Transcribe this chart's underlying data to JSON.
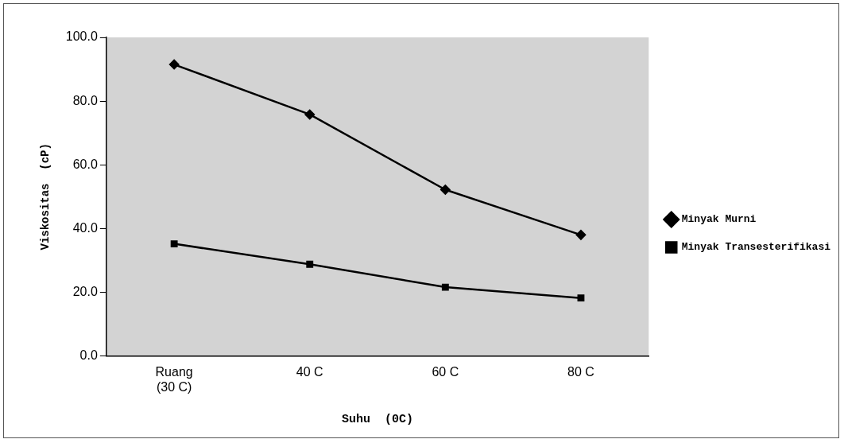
{
  "chart_data": {
    "type": "line",
    "xlabel": "Suhu  (0C)",
    "ylabel": "Viskositas  (cP)",
    "categories": [
      "Ruang\n(30 C)",
      "40 C",
      "60 C",
      "80 C"
    ],
    "series": [
      {
        "name": "Minyak Murni",
        "color": "#000000",
        "marker": "diamond",
        "values": [
          91.5,
          75.8,
          52.2,
          38.0
        ]
      },
      {
        "name": "Minyak Transesterifikasi",
        "color": "#000000",
        "marker": "square",
        "values": [
          35.2,
          28.8,
          21.6,
          18.2
        ]
      }
    ],
    "ylim": [
      0,
      100
    ],
    "yticks": [
      {
        "value": 0,
        "label": "0.0"
      },
      {
        "value": 20,
        "label": "20.0"
      },
      {
        "value": 40,
        "label": "40.0"
      },
      {
        "value": 60,
        "label": "60.0"
      },
      {
        "value": 80,
        "label": "80.0"
      },
      {
        "value": 100,
        "label": "100.0"
      }
    ],
    "grid": false,
    "legend": "right",
    "line_style": "solid"
  }
}
